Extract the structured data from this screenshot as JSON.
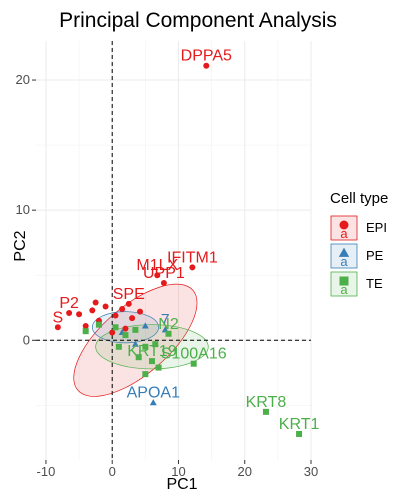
{
  "chart_data": {
    "type": "scatter",
    "title": "Principal Component Analysis",
    "xlabel": "PC1",
    "ylabel": "PC2",
    "xlim": [
      -11.5,
      30
    ],
    "ylim": [
      -9.2,
      23
    ],
    "xticks": [
      -10,
      0,
      10,
      20,
      30
    ],
    "yticks": [
      0,
      10,
      20
    ],
    "tick_labels_x": [
      "-10",
      "0",
      "10",
      "20",
      "30"
    ],
    "tick_labels_y": [
      "0",
      "10",
      "20"
    ],
    "grid": true,
    "reference_lines": {
      "x": 0,
      "y": 0,
      "style": "dashed"
    },
    "legend": {
      "title": "Cell type",
      "position": "right",
      "glyph_letter": "a",
      "entries": [
        {
          "label": "EPI",
          "color": "#e41a1c",
          "shape": "circle"
        },
        {
          "label": "PE",
          "color": "#377eb8",
          "shape": "triangle"
        },
        {
          "label": "TE",
          "color": "#4daf4a",
          "shape": "square"
        }
      ]
    },
    "series": [
      {
        "name": "EPI",
        "color": "#e41a1c",
        "shape": "circle",
        "points": [
          {
            "x": 14.2,
            "y": 21.1,
            "label": "DPPA5"
          },
          {
            "x": 12.1,
            "y": 5.6,
            "label": "IFITM1"
          },
          {
            "x": 7.8,
            "y": 4.4,
            "label": "UPP1"
          },
          {
            "x": 6.8,
            "y": 5.0,
            "label": "M1LX"
          },
          {
            "x": -6.5,
            "y": 2.1,
            "label": "P2"
          },
          {
            "x": -8.2,
            "y": 1.0,
            "label": "S"
          },
          {
            "x": 2.5,
            "y": 2.8,
            "label": "SPE"
          },
          {
            "x": -3.0,
            "y": 2.3
          },
          {
            "x": -2.0,
            "y": 1.5
          },
          {
            "x": -1.0,
            "y": 2.6
          },
          {
            "x": 0.5,
            "y": 1.9
          },
          {
            "x": 1.5,
            "y": 2.4
          },
          {
            "x": 3.0,
            "y": 1.7
          },
          {
            "x": 4.2,
            "y": 2.2
          },
          {
            "x": -4.0,
            "y": 1.1
          },
          {
            "x": -5.0,
            "y": 2.0
          },
          {
            "x": 0.0,
            "y": 0.6
          },
          {
            "x": 2.0,
            "y": 0.9
          },
          {
            "x": -2.5,
            "y": 2.9
          }
        ]
      },
      {
        "name": "PE",
        "color": "#377eb8",
        "shape": "triangle",
        "points": [
          {
            "x": 6.2,
            "y": -4.8,
            "label": "APOA1"
          },
          {
            "x": 8.0,
            "y": 0.8,
            "label": "7"
          },
          {
            "x": 5.0,
            "y": 1.1
          },
          {
            "x": 3.5,
            "y": -0.3
          },
          {
            "x": 1.5,
            "y": 0.6
          }
        ]
      },
      {
        "name": "TE",
        "color": "#4daf4a",
        "shape": "square",
        "points": [
          {
            "x": 23.2,
            "y": -5.5,
            "label": "KRT8"
          },
          {
            "x": 28.2,
            "y": -7.2,
            "label": "KRT1"
          },
          {
            "x": 12.3,
            "y": -1.8,
            "label": "S100A16"
          },
          {
            "x": 6.0,
            "y": -1.6,
            "label": "KRT19"
          },
          {
            "x": 8.5,
            "y": 0.5,
            "label": "N2"
          },
          {
            "x": 0.5,
            "y": 1.0
          },
          {
            "x": 2.0,
            "y": 0.4
          },
          {
            "x": 3.5,
            "y": 0.8
          },
          {
            "x": 5.0,
            "y": -0.5
          },
          {
            "x": 6.5,
            "y": -0.3
          },
          {
            "x": 4.0,
            "y": -1.3
          },
          {
            "x": 7.0,
            "y": -2.1
          },
          {
            "x": -2.0,
            "y": 1.2
          },
          {
            "x": -4.0,
            "y": 0.7
          },
          {
            "x": 1.0,
            "y": -0.5
          },
          {
            "x": 5.0,
            "y": -2.6
          }
        ]
      }
    ],
    "ellipses": [
      {
        "series": "EPI",
        "center": [
          3.5,
          0.0
        ],
        "radii": [
          11.5,
          2.6
        ],
        "rotation_deg": 41
      },
      {
        "series": "PE",
        "center": [
          2.0,
          1.0
        ],
        "radii": [
          5.0,
          1.2
        ],
        "rotation_deg": 0
      },
      {
        "series": "TE",
        "center": [
          6.0,
          -0.5
        ],
        "radii": [
          8.5,
          1.7
        ],
        "rotation_deg": 0
      }
    ]
  }
}
